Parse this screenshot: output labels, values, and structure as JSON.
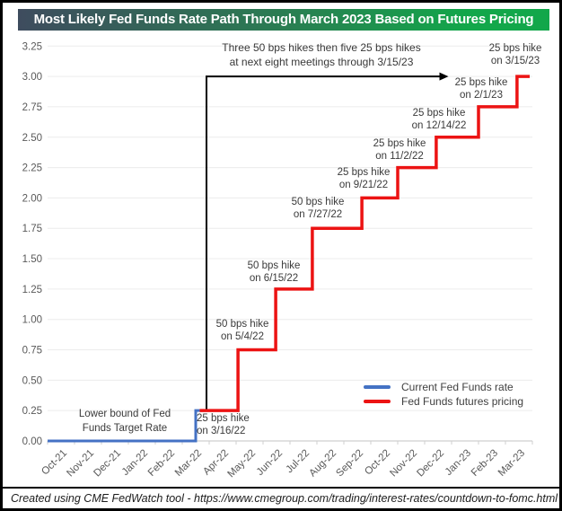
{
  "header": {
    "title": "Most Likely Fed Funds Rate Path Through March 2023 Based on Futures Pricing",
    "bg_from": "#3e4c5e",
    "bg_mid": "#2a7d52",
    "bg_to": "#12a74a"
  },
  "footer": {
    "credit": "Created using CME FedWatch tool - https://www.cmegroup.com/trading/interest-rates/countdown-to-fomc.html"
  },
  "legend": {
    "items": [
      {
        "label": "Current Fed Funds rate",
        "color": "#4472c4"
      },
      {
        "label": "Fed Funds futures pricing",
        "color": "#ec1313"
      }
    ]
  },
  "annotations": {
    "top_note": {
      "line1": "Three 50 bps hikes then five 25 bps hikes",
      "line2": "at next eight meetings through 3/15/23"
    },
    "lower_bound": {
      "line1": "Lower bound of Fed",
      "line2": "Funds Target Rate"
    },
    "hikes": [
      {
        "line1": "25 bps hike",
        "line2": "on 3/16/22"
      },
      {
        "line1": "50 bps hike",
        "line2": "on 5/4/22"
      },
      {
        "line1": "50 bps hike",
        "line2": "on 6/15/22"
      },
      {
        "line1": "50 bps hike",
        "line2": "on 7/27/22"
      },
      {
        "line1": "25 bps hike",
        "line2": "on 9/21/22"
      },
      {
        "line1": "25 bps hike",
        "line2": "on 11/2/22"
      },
      {
        "line1": "25 bps hike",
        "line2": "on 12/14/22"
      },
      {
        "line1": "25 bps hike",
        "line2": "on 2/1/23"
      },
      {
        "line1": "25 bps hike",
        "line2": "on 3/15/23"
      }
    ]
  },
  "chart_data": {
    "type": "line",
    "subtype": "step",
    "title": "Most Likely Fed Funds Rate Path Through March 2023 Based on Futures Pricing",
    "xlabel": "",
    "ylabel": "",
    "ylim": [
      0,
      3.25
    ],
    "grid": true,
    "legend_position": "lower right",
    "x_ticks": [
      "Oct-21",
      "Nov-21",
      "Dec-21",
      "Jan-22",
      "Feb-22",
      "Mar-22",
      "Apr-22",
      "May-22",
      "Jun-22",
      "Jul-22",
      "Aug-22",
      "Sep-22",
      "Oct-22",
      "Nov-22",
      "Dec-22",
      "Jan-23",
      "Feb-23",
      "Mar-23"
    ],
    "y_ticks": [
      "0.00",
      "0.25",
      "0.50",
      "0.75",
      "1.00",
      "1.25",
      "1.50",
      "1.75",
      "2.00",
      "2.25",
      "2.50",
      "2.75",
      "3.00",
      "3.25"
    ],
    "x_unit": "months from Oct-2021",
    "series": [
      {
        "name": "Current Fed Funds rate",
        "color": "#4472c4",
        "width": 3,
        "points": [
          [
            0.0,
            0.0
          ],
          [
            5.5,
            0.0
          ],
          [
            5.5,
            0.25
          ],
          [
            5.78,
            0.25
          ]
        ]
      },
      {
        "name": "Fed Funds futures pricing",
        "color": "#ec1313",
        "width": 3.5,
        "points": [
          [
            5.65,
            0.25
          ],
          [
            7.07,
            0.25
          ],
          [
            7.07,
            0.75
          ],
          [
            8.47,
            0.75
          ],
          [
            8.47,
            1.25
          ],
          [
            9.83,
            1.25
          ],
          [
            9.83,
            1.75
          ],
          [
            11.67,
            1.75
          ],
          [
            11.67,
            2.0
          ],
          [
            13.0,
            2.0
          ],
          [
            13.0,
            2.25
          ],
          [
            14.43,
            2.25
          ],
          [
            14.43,
            2.5
          ],
          [
            16.0,
            2.5
          ],
          [
            16.0,
            2.75
          ],
          [
            17.43,
            2.75
          ],
          [
            17.43,
            3.0
          ],
          [
            17.9,
            3.0
          ]
        ]
      }
    ],
    "hike_events": [
      {
        "date": "3/16/22",
        "bps": 25,
        "to_rate": 0.25
      },
      {
        "date": "5/4/22",
        "bps": 50,
        "to_rate": 0.75
      },
      {
        "date": "6/15/22",
        "bps": 50,
        "to_rate": 1.25
      },
      {
        "date": "7/27/22",
        "bps": 50,
        "to_rate": 1.75
      },
      {
        "date": "9/21/22",
        "bps": 25,
        "to_rate": 2.0
      },
      {
        "date": "11/2/22",
        "bps": 25,
        "to_rate": 2.25
      },
      {
        "date": "12/14/22",
        "bps": 25,
        "to_rate": 2.5
      },
      {
        "date": "2/1/23",
        "bps": 25,
        "to_rate": 2.75
      },
      {
        "date": "3/15/23",
        "bps": 25,
        "to_rate": 3.0
      }
    ],
    "arrow": {
      "corner_month": 5.9,
      "corner_rate": 3.0,
      "end_month": 14.55,
      "drop_rate": 0.25
    }
  }
}
